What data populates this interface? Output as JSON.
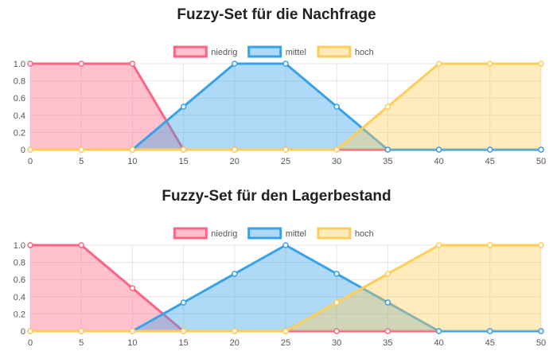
{
  "chart_data": [
    {
      "type": "line",
      "title": "Fuzzy-Set für die Nachfrage",
      "x": [
        0,
        5,
        10,
        15,
        20,
        25,
        30,
        35,
        40,
        45,
        50
      ],
      "xticks": [
        "0",
        "5",
        "10",
        "15",
        "20",
        "25",
        "30",
        "35",
        "40",
        "45",
        "50"
      ],
      "yticks": [
        "0",
        "0.2",
        "0.4",
        "0.6",
        "0.8",
        "1.0"
      ],
      "ylim": [
        0,
        1
      ],
      "fill": true,
      "legend": "top",
      "grid": true,
      "series": [
        {
          "name": "niedrig",
          "color": "#ff6384",
          "values": [
            1,
            1,
            1,
            0,
            0,
            0,
            0,
            0,
            0,
            0,
            0
          ]
        },
        {
          "name": "mittel",
          "color": "#36a2eb",
          "values": [
            0,
            0,
            0,
            0.5,
            1,
            1,
            0.5,
            0,
            0,
            0,
            0
          ]
        },
        {
          "name": "hoch",
          "color": "#ffcd56",
          "values": [
            0,
            0,
            0,
            0,
            0,
            0,
            0,
            0.5,
            1,
            1,
            1
          ]
        }
      ]
    },
    {
      "type": "line",
      "title": "Fuzzy-Set für den Lagerbestand",
      "x": [
        0,
        5,
        10,
        15,
        20,
        25,
        30,
        35,
        40,
        45,
        50
      ],
      "xticks": [
        "0",
        "5",
        "10",
        "15",
        "20",
        "25",
        "30",
        "35",
        "40",
        "45",
        "50"
      ],
      "yticks": [
        "0",
        "0.2",
        "0.4",
        "0.6",
        "0.8",
        "1.0"
      ],
      "ylim": [
        0,
        1
      ],
      "fill": true,
      "legend": "top",
      "grid": true,
      "series": [
        {
          "name": "niedrig",
          "color": "#ff6384",
          "values": [
            1,
            1,
            0.5,
            0,
            0,
            0,
            0,
            0,
            0,
            0,
            0
          ]
        },
        {
          "name": "mittel",
          "color": "#36a2eb",
          "values": [
            0,
            0,
            0,
            0.333,
            0.667,
            1,
            0.667,
            0.333,
            0,
            0,
            0
          ]
        },
        {
          "name": "hoch",
          "color": "#ffcd56",
          "values": [
            0,
            0,
            0,
            0,
            0,
            0,
            0.333,
            0.667,
            1,
            1,
            1
          ]
        }
      ]
    }
  ]
}
